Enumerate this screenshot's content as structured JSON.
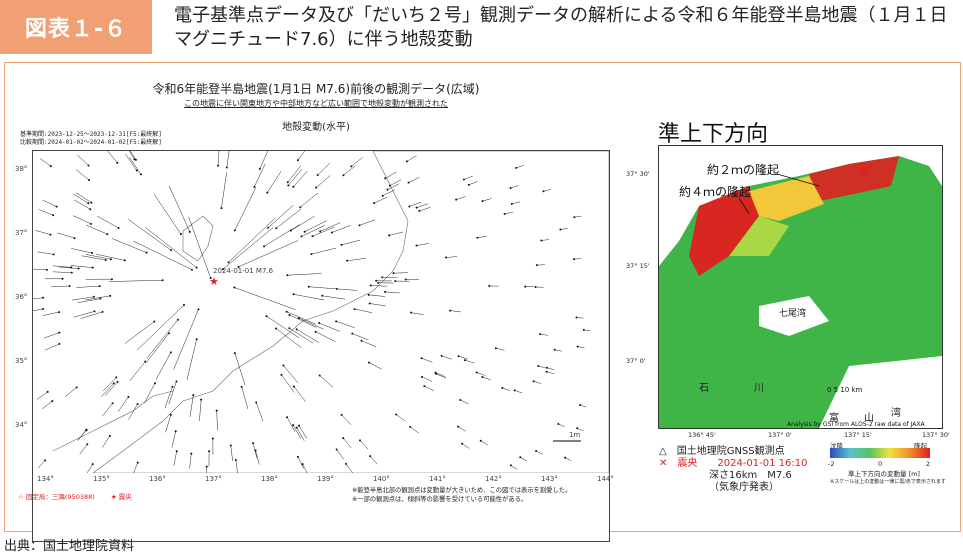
{
  "header": {
    "badge": "図表１-６",
    "title": "電子基準点データ及び「だいち２号」観測データの解析による令和６年能登半島地震（１月１日 マグニチュード7.6）に伴う地殻変動"
  },
  "left_panel": {
    "title": "令和6年能登半島地震(1月1日 M7.6)前後の観測データ(広域)",
    "subtitle": "この地震に伴い関東地方や中部地方など広い範囲で地殻変動が観測された",
    "heading": "地殻変動(水平)",
    "period1": "基準期間:2023-12-25〜2023-12-31[F5:最終解]",
    "period2": "比較期間:2024-01-02〜2024-01-02[F5:最終解]",
    "epicenter_label": "2024-01-01 M7.6",
    "x_ticks": [
      "134°",
      "135°",
      "136°",
      "137°",
      "138°",
      "139°",
      "140°",
      "141°",
      "142°",
      "143°",
      "144°"
    ],
    "y_ticks": [
      "38°",
      "37°",
      "36°",
      "35°",
      "34°"
    ],
    "scale_label": "1m",
    "legend_fixed": "☆ 固定局：三隅(950388)",
    "legend_epicenter": "★ 震央",
    "note1": "※能登半島北部の観測点は変動量が大きいため、この図では表示を割愛した。",
    "note2": "※一部の観測点は、傾斜等の影響を受けている可能性がある。"
  },
  "right_panel": {
    "title": "準上下方向",
    "label_2m": "約２ｍの隆起",
    "label_4m": "約４ｍの隆起",
    "lat_labels": [
      "37° 30'",
      "37° 15'",
      "37° 0'"
    ],
    "lon_labels": [
      "136° 45'",
      "137° 0'",
      "137° 15'",
      "137° 30'"
    ],
    "place1": "七尾湾",
    "place2": "石",
    "place3": "川",
    "place4": "富",
    "place5": "山",
    "place6": "湾",
    "scale_text": "0   5   10 km",
    "credit": "Analysis by GSI from ALOS-2 raw data of JAXA",
    "legend_station": "△　国土地理院GNSS観測点",
    "legend_epicenter": "✕　震央　　2024-01-01 16:10",
    "legend_depth": "深さ16km　M7.6",
    "legend_jma": "（気象庁発表）",
    "cbar_left": "沈降",
    "cbar_right": "隆起",
    "cbar_ticks": [
      "-2",
      "0",
      "2"
    ],
    "cbar_caption": "準上下方向の変動量 [m]",
    "cbar_note": "※スケールは上の変動は一律に黒/赤で表示されます"
  },
  "source": "出典：国土地理院資料",
  "colors": {
    "accent": "#f0a072",
    "uplift": "#e02020",
    "ground": "#3fb548"
  }
}
